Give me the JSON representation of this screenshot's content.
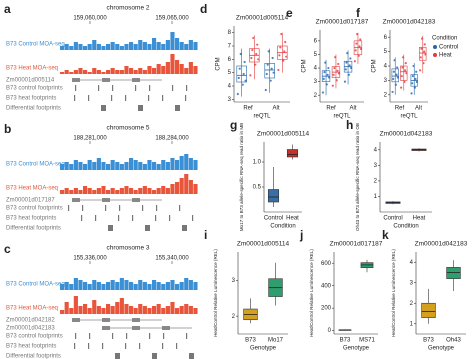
{
  "chart_data": [
    {
      "type": "track",
      "panel": "a",
      "title": "chromosome 2",
      "coords": [
        "159,060,000",
        "159,065,000"
      ],
      "signals": [
        {
          "name": "B73 Control MOA-seq",
          "color": "#3b8fd4",
          "values": [
            0.2,
            0.3,
            0.2,
            0.4,
            0.3,
            0.2,
            0.3,
            0.5,
            0.3,
            0.2,
            0.3,
            0.4,
            0.3,
            0.2,
            0.3,
            0.4,
            0.3,
            0.5,
            0.4,
            0.3,
            0.6,
            0.4,
            0.3,
            0.5,
            0.9,
            0.6,
            0.4,
            0.3,
            0.5,
            0.4
          ]
        },
        {
          "name": "B73 Heat MOA-seq",
          "color": "#e8553a",
          "values": [
            0.1,
            0.2,
            0.1,
            0.2,
            0.3,
            0.2,
            0.1,
            0.3,
            0.2,
            0.1,
            0.2,
            0.3,
            0.2,
            0.2,
            0.4,
            0.3,
            0.2,
            0.3,
            0.2,
            0.4,
            0.3,
            0.5,
            0.4,
            0.6,
            1.0,
            0.7,
            0.5,
            0.3,
            0.6,
            0.4
          ]
        }
      ],
      "genes": [
        "Zm00001d005114"
      ],
      "footprints": [
        "B73 control footprints",
        "B73 heat footprints",
        "Differential footprints"
      ]
    },
    {
      "type": "track",
      "panel": "b",
      "title": "chromosome 5",
      "coords": [
        "188,281,000",
        "188,284,000"
      ],
      "signals": [
        {
          "name": "B73 Control MOA-seq",
          "color": "#3b8fd4",
          "values": [
            0.3,
            0.4,
            0.3,
            0.5,
            0.4,
            0.3,
            0.5,
            0.4,
            0.6,
            0.4,
            0.3,
            0.5,
            0.4,
            0.3,
            0.4,
            0.6,
            0.5,
            0.4,
            0.3,
            0.5,
            0.4,
            0.3,
            0.5,
            0.4,
            0.6,
            0.5,
            0.7,
            0.8,
            0.6,
            0.5
          ]
        },
        {
          "name": "B73 Heat MOA-seq",
          "color": "#e8553a",
          "values": [
            0.2,
            0.3,
            0.2,
            0.3,
            0.2,
            0.4,
            0.3,
            0.2,
            0.3,
            0.4,
            0.2,
            0.3,
            0.2,
            0.3,
            0.4,
            0.3,
            0.2,
            0.3,
            0.4,
            0.3,
            0.2,
            0.3,
            0.4,
            0.3,
            0.5,
            0.6,
            0.8,
            1.0,
            0.7,
            0.5
          ]
        }
      ],
      "genes": [
        "Zm00001d017187"
      ],
      "footprints": [
        "B73 control footprints",
        "B73 heat footprints",
        "Differential footprints"
      ]
    },
    {
      "type": "track",
      "panel": "c",
      "title": "chromosome 3",
      "coords": [
        "155,336,000",
        "155,340,000"
      ],
      "signals": [
        {
          "name": "B73 Control MOA-seq",
          "color": "#3b8fd4",
          "values": [
            0.3,
            0.4,
            0.3,
            0.6,
            0.5,
            0.4,
            0.3,
            0.5,
            0.4,
            0.3,
            0.4,
            0.5,
            0.4,
            0.6,
            0.5,
            0.4,
            0.3,
            0.5,
            0.4,
            0.3,
            0.5,
            0.4,
            0.3,
            0.4,
            0.5,
            0.3,
            0.4,
            0.6,
            0.5,
            0.4
          ]
        },
        {
          "name": "B73 Heat MOA-seq",
          "color": "#e8553a",
          "values": [
            0.2,
            0.6,
            0.3,
            0.9,
            0.4,
            0.5,
            0.3,
            0.7,
            0.4,
            0.3,
            0.5,
            0.4,
            0.6,
            0.8,
            0.5,
            0.4,
            0.3,
            0.5,
            0.4,
            0.3,
            0.4,
            0.5,
            0.3,
            0.4,
            0.6,
            0.3,
            0.4,
            0.5,
            0.4,
            0.3
          ]
        }
      ],
      "genes": [
        "Zm00001d042182",
        "Zm00001d042183"
      ],
      "footprints": [
        "B73 control footprints",
        "B73 heat footprints",
        "Differential footprints"
      ]
    },
    {
      "type": "box",
      "panel": "d",
      "title": "Zm00001d005114",
      "ylabel": "CPM",
      "xlabel": "reQTL",
      "categories": [
        "Ref",
        "Alt"
      ],
      "ylim": [
        2.8,
        8.5
      ],
      "yticks": [
        3,
        4,
        5,
        6,
        7,
        8
      ],
      "series": [
        {
          "name": "Control",
          "color": "#2565ad",
          "boxes": [
            {
              "min": 3.2,
              "q1": 4.3,
              "median": 4.8,
              "q3": 5.5,
              "max": 6.8,
              "points": [
                3.4,
                4.1,
                4.6,
                4.9,
                5.3,
                5.8,
                6.4,
                4.4
              ]
            },
            {
              "min": 3.5,
              "q1": 4.6,
              "median": 5.2,
              "q3": 5.7,
              "max": 6.8,
              "points": [
                3.7,
                4.4,
                4.9,
                5.3,
                5.6,
                6.1,
                6.6,
                5.0
              ]
            }
          ]
        },
        {
          "name": "Heat",
          "color": "#e23b3f",
          "boxes": [
            {
              "min": 4.5,
              "q1": 5.8,
              "median": 6.3,
              "q3": 6.8,
              "max": 7.8,
              "points": [
                4.8,
                5.6,
                6.1,
                6.4,
                6.7,
                7.1,
                7.6,
                6.0
              ]
            },
            {
              "min": 5.0,
              "q1": 6.0,
              "median": 6.5,
              "q3": 7.0,
              "max": 8.0,
              "points": [
                5.2,
                5.9,
                6.3,
                6.6,
                6.9,
                7.3,
                7.9,
                6.2
              ]
            }
          ]
        }
      ]
    },
    {
      "type": "box",
      "panel": "e",
      "title": "Zm00001d017187",
      "ylabel": "CPM",
      "xlabel": "reQTL",
      "categories": [
        "Ref",
        "Alt"
      ],
      "ylim": [
        1.5,
        6.8
      ],
      "yticks": [
        2,
        3,
        4,
        5,
        6
      ],
      "series": [
        {
          "name": "Control",
          "color": "#2565ad",
          "boxes": [
            {
              "min": 2.0,
              "q1": 3.0,
              "median": 3.4,
              "q3": 3.8,
              "max": 4.6,
              "points": [
                2.2,
                2.8,
                3.2,
                3.5,
                3.7,
                4.0,
                4.4,
                3.3
              ]
            },
            {
              "min": 2.8,
              "q1": 3.7,
              "median": 4.1,
              "q3": 4.5,
              "max": 5.3,
              "points": [
                3.0,
                3.5,
                3.9,
                4.2,
                4.4,
                4.7,
                5.1,
                4.0
              ]
            }
          ]
        },
        {
          "name": "Heat",
          "color": "#e23b3f",
          "boxes": [
            {
              "min": 2.5,
              "q1": 3.3,
              "median": 3.7,
              "q3": 4.1,
              "max": 5.0,
              "points": [
                2.7,
                3.1,
                3.5,
                3.8,
                4.0,
                4.3,
                4.8,
                3.6
              ]
            },
            {
              "min": 4.3,
              "q1": 5.0,
              "median": 5.5,
              "q3": 6.0,
              "max": 6.6,
              "points": [
                4.5,
                4.9,
                5.3,
                5.6,
                5.8,
                6.1,
                6.5,
                5.4
              ]
            }
          ]
        }
      ]
    },
    {
      "type": "box",
      "panel": "f",
      "title": "Zm00001d042183",
      "ylabel": "CPM",
      "xlabel": "reQTL",
      "categories": [
        "Ref",
        "Alt"
      ],
      "ylim": [
        1.5,
        6.5
      ],
      "yticks": [
        2,
        3,
        4,
        5,
        6
      ],
      "legend_title": "Condition",
      "series": [
        {
          "name": "Control",
          "color": "#2565ad",
          "boxes": [
            {
              "min": 2.0,
              "q1": 2.9,
              "median": 3.3,
              "q3": 3.8,
              "max": 4.6,
              "points": [
                2.2,
                2.7,
                3.1,
                3.4,
                3.6,
                3.9,
                4.4,
                3.2
              ]
            },
            {
              "min": 2.0,
              "q1": 2.6,
              "median": 3.0,
              "q3": 3.4,
              "max": 4.2,
              "points": [
                2.1,
                2.5,
                2.8,
                3.1,
                3.3,
                3.6,
                4.0,
                2.9
              ]
            }
          ]
        },
        {
          "name": "Heat",
          "color": "#e23b3f",
          "boxes": [
            {
              "min": 2.3,
              "q1": 3.0,
              "median": 3.6,
              "q3": 4.0,
              "max": 4.8,
              "points": [
                2.5,
                2.9,
                3.3,
                3.7,
                3.9,
                4.2,
                4.6,
                3.5
              ]
            },
            {
              "min": 3.5,
              "q1": 4.4,
              "median": 4.9,
              "q3": 5.3,
              "max": 6.1,
              "points": [
                3.7,
                4.2,
                4.6,
                5.0,
                5.2,
                5.5,
                5.9,
                4.8
              ]
            }
          ]
        }
      ]
    },
    {
      "type": "box",
      "panel": "g",
      "title": "Zm00001d005114",
      "ylabel": "Mo17 to B73 allele-specific RNA-seq read ratio in MB",
      "xlabel": "Condition",
      "categories": [
        "Control",
        "Heat"
      ],
      "colors": [
        "#3a6ea5",
        "#c2332d"
      ],
      "ylim": [
        0,
        1.4
      ],
      "yticks": [
        0.5,
        {
          "value": 1,
          "label": "1.0"
        }
      ],
      "boxes": [
        {
          "min": 0.1,
          "q1": 0.2,
          "median": 0.3,
          "q3": 0.45,
          "max": 0.9
        },
        {
          "min": 1.05,
          "q1": 1.1,
          "median": 1.15,
          "q3": 1.25,
          "max": 1.35
        }
      ]
    },
    {
      "type": "box",
      "panel": "h",
      "title": "Zm00001d042183",
      "ylabel": "Oh43 to B73 allele-specific RNA-seq read ratio in OB",
      "xlabel": "Condition",
      "categories": [
        "Control",
        "Heat"
      ],
      "colors": [
        "#3a6ea5",
        "#c2332d"
      ],
      "ylim": [
        0,
        4.5
      ],
      "yticks": [
        1,
        2,
        3,
        4
      ],
      "boxes": [
        {
          "min": 0.5,
          "q1": 0.55,
          "median": 0.6,
          "q3": 0.65,
          "max": 0.7
        },
        {
          "min": 3.9,
          "q1": 3.95,
          "median": 4.0,
          "q3": 4.05,
          "max": 4.1
        }
      ]
    },
    {
      "type": "box",
      "panel": "i",
      "title": "Zm00001d005114",
      "ylabel": "Heat/Control Relative Luminescence (REL)",
      "xlabel": "Genotype",
      "categories": [
        "B73",
        "Mo17"
      ],
      "colors": [
        "#d4a020",
        "#2e9e6e"
      ],
      "ylim": [
        1.5,
        3.8
      ],
      "yticks": [
        2,
        3
      ],
      "boxes": [
        {
          "min": 1.8,
          "q1": 1.9,
          "median": 2.05,
          "q3": 2.2,
          "max": 2.5
        },
        {
          "min": 2.3,
          "q1": 2.55,
          "median": 2.8,
          "q3": 3.05,
          "max": 3.5
        }
      ]
    },
    {
      "type": "box",
      "panel": "j",
      "title": "Zm00001d017187",
      "ylabel": "Heat/Control Relative Luminescence (REL)",
      "xlabel": "Genotype",
      "categories": [
        "B73",
        "MS71"
      ],
      "colors": [
        "#d4a020",
        "#2e9e6e"
      ],
      "ylim": [
        -30,
        700
      ],
      "yticks": [
        0,
        200,
        400,
        600
      ],
      "boxes": [
        {
          "min": 0,
          "q1": 2,
          "median": 5,
          "q3": 8,
          "max": 10
        },
        {
          "min": 520,
          "q1": 560,
          "median": 585,
          "q3": 605,
          "max": 630
        }
      ]
    },
    {
      "type": "box",
      "panel": "k",
      "title": "Zm00001d042183",
      "ylabel": "Heat/Control Relative Luminescence (REL)",
      "xlabel": "Genotype",
      "categories": [
        "B73",
        "Oh43"
      ],
      "colors": [
        "#d4a020",
        "#2e9e6e"
      ],
      "ylim": [
        0.5,
        4.5
      ],
      "yticks": [
        1,
        2,
        3,
        4
      ],
      "boxes": [
        {
          "min": 1.0,
          "q1": 1.3,
          "median": 1.6,
          "q3": 2.0,
          "max": 2.7
        },
        {
          "min": 2.6,
          "q1": 3.2,
          "median": 3.5,
          "q3": 3.75,
          "max": 4.1
        }
      ]
    }
  ]
}
